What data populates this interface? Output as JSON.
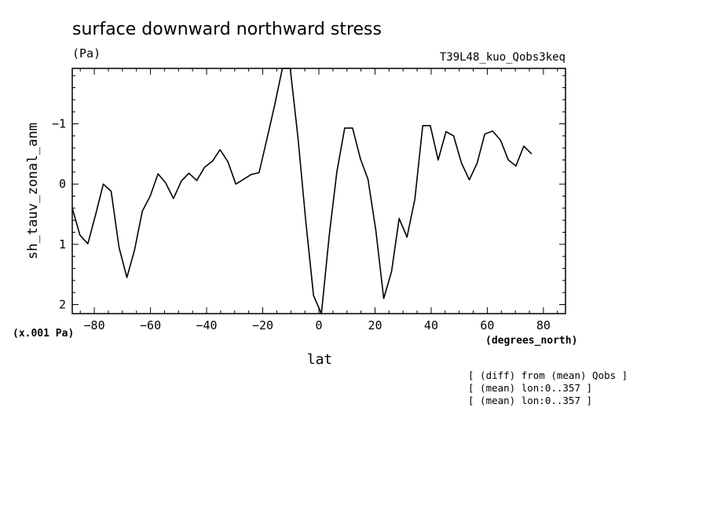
{
  "header": {
    "title": "surface downward northward stress",
    "units": "(Pa)",
    "run_id": "T39L48_kuo_Qobs3keq"
  },
  "axes": {
    "y_scale_note": "(x.001 Pa)",
    "x_units": "(degrees_north)"
  },
  "notes": [
    "[ (diff) from (mean) Qobs ]",
    "[ (mean) lon:0..357 ]",
    "[ (mean) lon:0..357 ]"
  ],
  "chart_data": {
    "type": "line",
    "title": "surface downward northward stress",
    "xlabel": "lat",
    "ylabel": "sh_tauv_zonal_anm",
    "xlim": [
      -87.86,
      87.86
    ],
    "ylim": [
      2.15,
      -1.92
    ],
    "y_inverted": true,
    "x_ticks": [
      -80,
      -60,
      -40,
      -20,
      0,
      20,
      40,
      60,
      80
    ],
    "y_ticks": [
      -1,
      0,
      1,
      2
    ],
    "grid": false,
    "series": [
      {
        "values": [
          [
            -87.86,
            0.4
          ],
          [
            -85.1,
            0.85
          ],
          [
            -82.3,
            0.99
          ],
          [
            -79.5,
            0.5
          ],
          [
            -76.8,
            0.0
          ],
          [
            -74.0,
            0.12
          ],
          [
            -71.2,
            1.05
          ],
          [
            -68.4,
            1.55
          ],
          [
            -65.7,
            1.1
          ],
          [
            -62.9,
            0.45
          ],
          [
            -60.1,
            0.2
          ],
          [
            -57.3,
            -0.17
          ],
          [
            -54.6,
            -0.02
          ],
          [
            -51.8,
            0.24
          ],
          [
            -49.0,
            -0.05
          ],
          [
            -46.3,
            -0.18
          ],
          [
            -43.5,
            -0.06
          ],
          [
            -40.7,
            -0.28
          ],
          [
            -37.9,
            -0.38
          ],
          [
            -35.2,
            -0.57
          ],
          [
            -32.4,
            -0.37
          ],
          [
            -29.6,
            0.0
          ],
          [
            -26.8,
            -0.08
          ],
          [
            -24.1,
            -0.16
          ],
          [
            -21.3,
            -0.19
          ],
          [
            -18.5,
            -0.75
          ],
          [
            -15.8,
            -1.3
          ],
          [
            -13.0,
            -1.92
          ],
          [
            -10.2,
            -1.92
          ],
          [
            -7.4,
            -0.75
          ],
          [
            -4.7,
            0.6
          ],
          [
            -1.9,
            1.85
          ],
          [
            0.9,
            2.15
          ],
          [
            3.7,
            0.85
          ],
          [
            6.4,
            -0.2
          ],
          [
            9.2,
            -0.93
          ],
          [
            12.0,
            -0.93
          ],
          [
            14.8,
            -0.42
          ],
          [
            17.5,
            -0.08
          ],
          [
            20.3,
            0.77
          ],
          [
            23.1,
            1.9
          ],
          [
            25.9,
            1.45
          ],
          [
            28.6,
            0.57
          ],
          [
            31.4,
            0.88
          ],
          [
            34.2,
            0.25
          ],
          [
            37.0,
            -0.97
          ],
          [
            39.7,
            -0.97
          ],
          [
            42.5,
            -0.4
          ],
          [
            45.3,
            -0.87
          ],
          [
            48.0,
            -0.8
          ],
          [
            50.8,
            -0.35
          ],
          [
            53.6,
            -0.07
          ],
          [
            56.4,
            -0.35
          ],
          [
            59.1,
            -0.83
          ],
          [
            61.9,
            -0.88
          ],
          [
            64.7,
            -0.73
          ],
          [
            67.5,
            -0.4
          ],
          [
            70.2,
            -0.3
          ],
          [
            73.0,
            -0.63
          ],
          [
            75.8,
            -0.5
          ]
        ]
      }
    ]
  }
}
